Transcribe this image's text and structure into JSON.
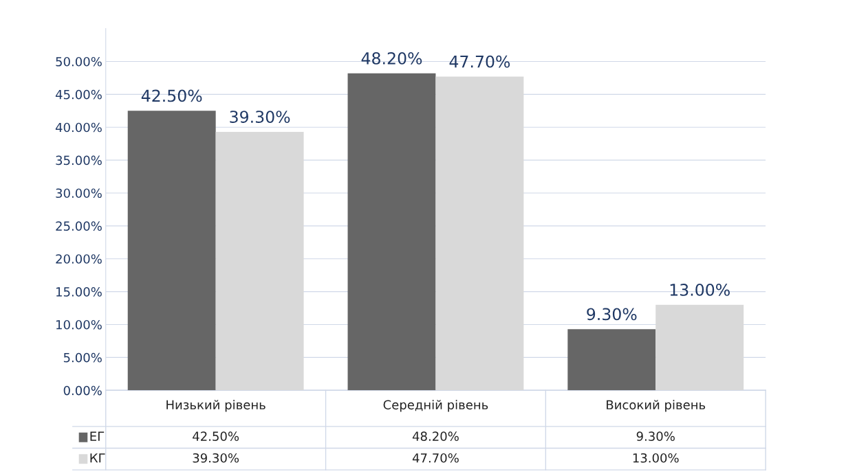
{
  "chart_data": {
    "type": "bar",
    "categories": [
      "Низький рівень",
      "Середній рівень",
      "Високий рівень"
    ],
    "series": [
      {
        "name": "ЕГ",
        "color": "#666666",
        "values": [
          42.5,
          48.2,
          9.3
        ],
        "value_labels": [
          "42.50%",
          "48.20%",
          "9.30%"
        ]
      },
      {
        "name": "КГ",
        "color": "#d9d9d9",
        "values": [
          39.3,
          47.7,
          13.0
        ],
        "value_labels": [
          "39.30%",
          "47.70%",
          "13.00%"
        ]
      }
    ],
    "ylim": [
      0,
      55
    ],
    "yticks": [
      {
        "value": 0,
        "label": "0.00%"
      },
      {
        "value": 5,
        "label": "5.00%"
      },
      {
        "value": 10,
        "label": "10.00%"
      },
      {
        "value": 15,
        "label": "15.00%"
      },
      {
        "value": 20,
        "label": "20.00%"
      },
      {
        "value": 25,
        "label": "25.00%"
      },
      {
        "value": 30,
        "label": "30.00%"
      },
      {
        "value": 35,
        "label": "35.00%"
      },
      {
        "value": 40,
        "label": "40.00%"
      },
      {
        "value": 45,
        "label": "45.00%"
      },
      {
        "value": 50,
        "label": "50.00%"
      }
    ],
    "grid": "y",
    "legend": "bottom"
  }
}
